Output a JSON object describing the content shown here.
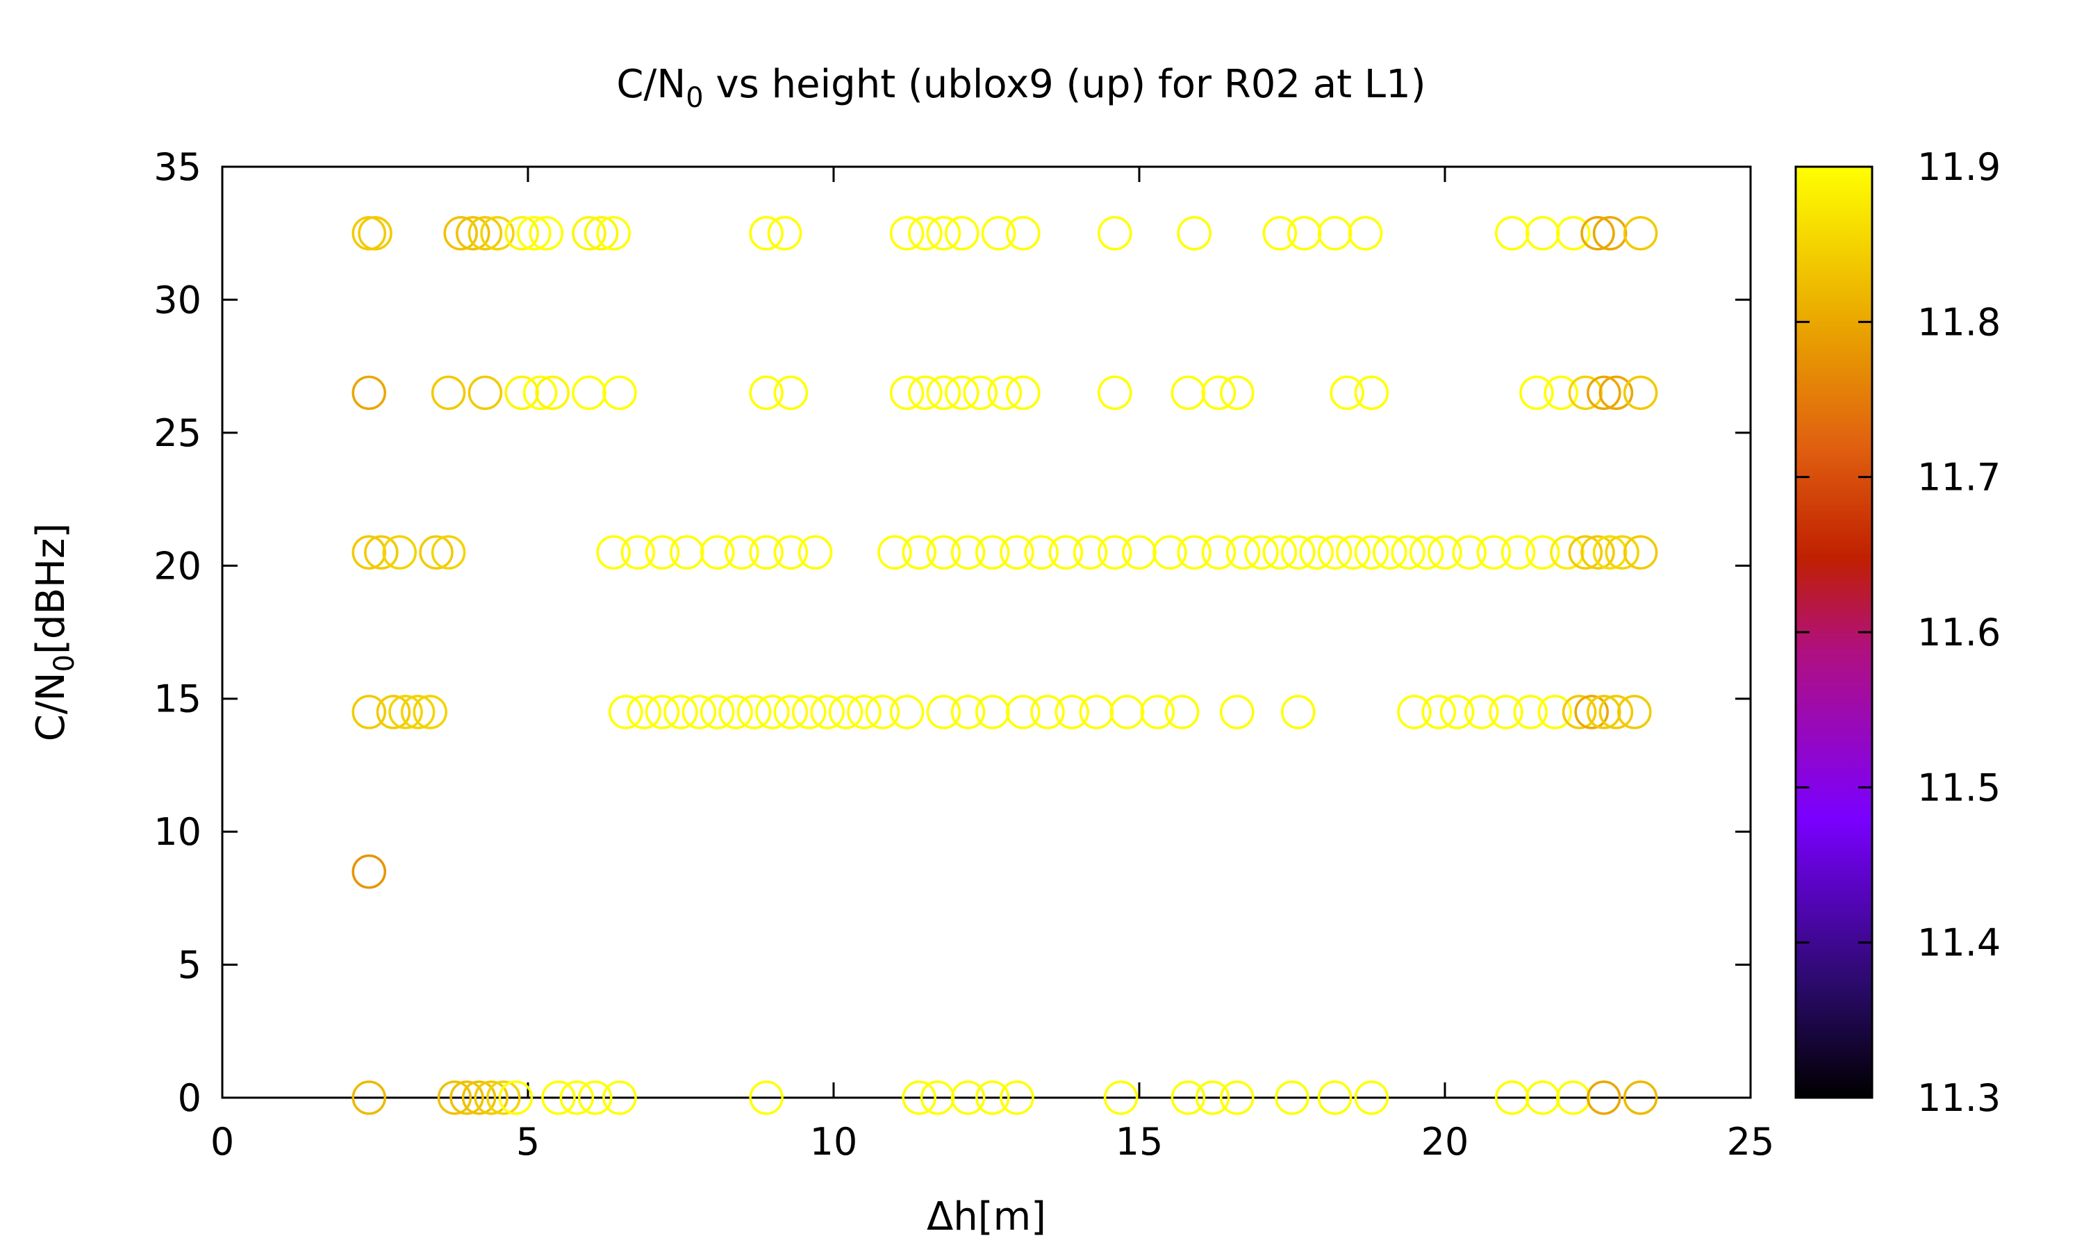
{
  "chart_data": {
    "type": "scatter",
    "title": "C/N0 vs height (ublox9 (up) for R02 at L1)",
    "title_main": "C/N",
    "title_sub": "0",
    "title_rest": " vs height (ublox9 (up) for R02 at L1)",
    "xlabel": "Δh[m]",
    "ylabel": "C/N0[dBHz]",
    "ylabel_main": "C/N",
    "ylabel_sub": "0",
    "ylabel_rest": "[dBHz]",
    "xlim": [
      0,
      25
    ],
    "ylim": [
      0,
      35
    ],
    "x_ticks": [
      0,
      5,
      10,
      15,
      20,
      25
    ],
    "y_ticks": [
      0,
      5,
      10,
      15,
      20,
      25,
      30,
      35
    ],
    "marker": "open-circle",
    "grid": false,
    "colorbar": {
      "range": [
        11.3,
        11.9
      ],
      "ticks": [
        11.3,
        11.4,
        11.5,
        11.6,
        11.7,
        11.8,
        11.9
      ],
      "palette": "black-blue-purple-red-orange-yellow",
      "stops": [
        {
          "v": 0.0,
          "color": "#000000"
        },
        {
          "v": 0.12,
          "color": "#2a0a6a"
        },
        {
          "v": 0.3,
          "color": "#7a00ff"
        },
        {
          "v": 0.48,
          "color": "#b01080"
        },
        {
          "v": 0.58,
          "color": "#c02000"
        },
        {
          "v": 0.7,
          "color": "#e06010"
        },
        {
          "v": 0.82,
          "color": "#e8a000"
        },
        {
          "v": 1.0,
          "color": "#ffff00"
        }
      ]
    },
    "series": [
      {
        "points": [
          [
            2.4,
            32.5,
            11.84
          ],
          [
            2.5,
            32.5,
            11.84
          ],
          [
            3.9,
            32.5,
            11.83
          ],
          [
            4.1,
            32.5,
            11.83
          ],
          [
            4.3,
            32.5,
            11.84
          ],
          [
            4.5,
            32.5,
            11.85
          ],
          [
            4.9,
            32.5,
            11.89
          ],
          [
            5.1,
            32.5,
            11.9
          ],
          [
            5.3,
            32.5,
            11.9
          ],
          [
            6.0,
            32.5,
            11.89
          ],
          [
            6.2,
            32.5,
            11.89
          ],
          [
            6.4,
            32.5,
            11.9
          ],
          [
            8.9,
            32.5,
            11.9
          ],
          [
            9.2,
            32.5,
            11.9
          ],
          [
            11.2,
            32.5,
            11.9
          ],
          [
            11.5,
            32.5,
            11.9
          ],
          [
            11.8,
            32.5,
            11.9
          ],
          [
            12.1,
            32.5,
            11.9
          ],
          [
            12.7,
            32.5,
            11.9
          ],
          [
            13.1,
            32.5,
            11.9
          ],
          [
            14.6,
            32.5,
            11.9
          ],
          [
            15.9,
            32.5,
            11.9
          ],
          [
            17.3,
            32.5,
            11.9
          ],
          [
            17.7,
            32.5,
            11.9
          ],
          [
            18.2,
            32.5,
            11.9
          ],
          [
            18.7,
            32.5,
            11.9
          ],
          [
            21.1,
            32.5,
            11.9
          ],
          [
            21.6,
            32.5,
            11.9
          ],
          [
            22.1,
            32.5,
            11.9
          ],
          [
            22.5,
            32.5,
            11.8
          ],
          [
            22.7,
            32.5,
            11.8
          ],
          [
            23.2,
            32.5,
            11.84
          ],
          [
            2.4,
            26.5,
            11.8
          ],
          [
            3.7,
            26.5,
            11.84
          ],
          [
            4.3,
            26.5,
            11.84
          ],
          [
            4.9,
            26.5,
            11.89
          ],
          [
            5.2,
            26.5,
            11.9
          ],
          [
            5.4,
            26.5,
            11.89
          ],
          [
            6.0,
            26.5,
            11.9
          ],
          [
            6.5,
            26.5,
            11.9
          ],
          [
            8.9,
            26.5,
            11.9
          ],
          [
            9.3,
            26.5,
            11.9
          ],
          [
            11.2,
            26.5,
            11.9
          ],
          [
            11.5,
            26.5,
            11.9
          ],
          [
            11.8,
            26.5,
            11.9
          ],
          [
            12.1,
            26.5,
            11.9
          ],
          [
            12.4,
            26.5,
            11.9
          ],
          [
            12.8,
            26.5,
            11.9
          ],
          [
            13.1,
            26.5,
            11.9
          ],
          [
            14.6,
            26.5,
            11.9
          ],
          [
            15.8,
            26.5,
            11.9
          ],
          [
            16.3,
            26.5,
            11.9
          ],
          [
            16.6,
            26.5,
            11.9
          ],
          [
            18.4,
            26.5,
            11.9
          ],
          [
            18.8,
            26.5,
            11.9
          ],
          [
            21.5,
            26.5,
            11.9
          ],
          [
            21.9,
            26.5,
            11.9
          ],
          [
            22.3,
            26.5,
            11.85
          ],
          [
            22.6,
            26.5,
            11.8
          ],
          [
            22.8,
            26.5,
            11.8
          ],
          [
            23.2,
            26.5,
            11.84
          ],
          [
            2.4,
            20.5,
            11.84
          ],
          [
            2.6,
            20.5,
            11.84
          ],
          [
            2.9,
            20.5,
            11.85
          ],
          [
            3.5,
            20.5,
            11.84
          ],
          [
            3.7,
            20.5,
            11.85
          ],
          [
            6.4,
            20.5,
            11.9
          ],
          [
            6.8,
            20.5,
            11.9
          ],
          [
            7.2,
            20.5,
            11.9
          ],
          [
            7.6,
            20.5,
            11.9
          ],
          [
            8.1,
            20.5,
            11.9
          ],
          [
            8.5,
            20.5,
            11.9
          ],
          [
            8.9,
            20.5,
            11.9
          ],
          [
            9.3,
            20.5,
            11.9
          ],
          [
            9.7,
            20.5,
            11.9
          ],
          [
            11.0,
            20.5,
            11.9
          ],
          [
            11.4,
            20.5,
            11.9
          ],
          [
            11.8,
            20.5,
            11.9
          ],
          [
            12.2,
            20.5,
            11.9
          ],
          [
            12.6,
            20.5,
            11.9
          ],
          [
            13.0,
            20.5,
            11.9
          ],
          [
            13.4,
            20.5,
            11.9
          ],
          [
            13.8,
            20.5,
            11.9
          ],
          [
            14.2,
            20.5,
            11.9
          ],
          [
            14.6,
            20.5,
            11.9
          ],
          [
            15.0,
            20.5,
            11.9
          ],
          [
            15.5,
            20.5,
            11.9
          ],
          [
            15.9,
            20.5,
            11.9
          ],
          [
            16.3,
            20.5,
            11.9
          ],
          [
            16.7,
            20.5,
            11.9
          ],
          [
            17.0,
            20.5,
            11.9
          ],
          [
            17.3,
            20.5,
            11.9
          ],
          [
            17.6,
            20.5,
            11.9
          ],
          [
            17.9,
            20.5,
            11.9
          ],
          [
            18.2,
            20.5,
            11.9
          ],
          [
            18.5,
            20.5,
            11.9
          ],
          [
            18.8,
            20.5,
            11.9
          ],
          [
            19.1,
            20.5,
            11.9
          ],
          [
            19.4,
            20.5,
            11.9
          ],
          [
            19.7,
            20.5,
            11.9
          ],
          [
            20.0,
            20.5,
            11.9
          ],
          [
            20.4,
            20.5,
            11.9
          ],
          [
            20.8,
            20.5,
            11.9
          ],
          [
            21.2,
            20.5,
            11.9
          ],
          [
            21.6,
            20.5,
            11.9
          ],
          [
            22.0,
            20.5,
            11.88
          ],
          [
            22.3,
            20.5,
            11.84
          ],
          [
            22.5,
            20.5,
            11.84
          ],
          [
            22.7,
            20.5,
            11.86
          ],
          [
            22.9,
            20.5,
            11.85
          ],
          [
            23.2,
            20.5,
            11.84
          ],
          [
            2.4,
            14.5,
            11.84
          ],
          [
            2.8,
            14.5,
            11.84
          ],
          [
            3.0,
            14.5,
            11.85
          ],
          [
            3.2,
            14.5,
            11.85
          ],
          [
            3.4,
            14.5,
            11.85
          ],
          [
            6.6,
            14.5,
            11.9
          ],
          [
            6.9,
            14.5,
            11.9
          ],
          [
            7.2,
            14.5,
            11.9
          ],
          [
            7.5,
            14.5,
            11.9
          ],
          [
            7.8,
            14.5,
            11.9
          ],
          [
            8.1,
            14.5,
            11.9
          ],
          [
            8.4,
            14.5,
            11.9
          ],
          [
            8.7,
            14.5,
            11.9
          ],
          [
            9.0,
            14.5,
            11.9
          ],
          [
            9.3,
            14.5,
            11.9
          ],
          [
            9.6,
            14.5,
            11.9
          ],
          [
            9.9,
            14.5,
            11.9
          ],
          [
            10.2,
            14.5,
            11.9
          ],
          [
            10.5,
            14.5,
            11.9
          ],
          [
            10.8,
            14.5,
            11.9
          ],
          [
            11.2,
            14.5,
            11.9
          ],
          [
            11.8,
            14.5,
            11.9
          ],
          [
            12.2,
            14.5,
            11.9
          ],
          [
            12.6,
            14.5,
            11.9
          ],
          [
            13.1,
            14.5,
            11.9
          ],
          [
            13.5,
            14.5,
            11.9
          ],
          [
            13.9,
            14.5,
            11.9
          ],
          [
            14.3,
            14.5,
            11.9
          ],
          [
            14.8,
            14.5,
            11.9
          ],
          [
            15.3,
            14.5,
            11.9
          ],
          [
            15.7,
            14.5,
            11.9
          ],
          [
            16.6,
            14.5,
            11.9
          ],
          [
            17.6,
            14.5,
            11.9
          ],
          [
            19.5,
            14.5,
            11.9
          ],
          [
            19.9,
            14.5,
            11.9
          ],
          [
            20.2,
            14.5,
            11.9
          ],
          [
            20.6,
            14.5,
            11.9
          ],
          [
            21.0,
            14.5,
            11.9
          ],
          [
            21.4,
            14.5,
            11.9
          ],
          [
            21.8,
            14.5,
            11.9
          ],
          [
            22.2,
            14.5,
            11.84
          ],
          [
            22.4,
            14.5,
            11.8
          ],
          [
            22.6,
            14.5,
            11.84
          ],
          [
            22.8,
            14.5,
            11.84
          ],
          [
            23.1,
            14.5,
            11.84
          ],
          [
            2.4,
            8.5,
            11.78
          ],
          [
            2.4,
            0,
            11.82
          ],
          [
            3.8,
            0,
            11.83
          ],
          [
            4.0,
            0,
            11.83
          ],
          [
            4.2,
            0,
            11.83
          ],
          [
            4.4,
            0,
            11.84
          ],
          [
            4.6,
            0,
            11.85
          ],
          [
            4.8,
            0,
            11.9
          ],
          [
            5.5,
            0,
            11.9
          ],
          [
            5.8,
            0,
            11.9
          ],
          [
            6.1,
            0,
            11.9
          ],
          [
            6.5,
            0,
            11.9
          ],
          [
            8.9,
            0,
            11.9
          ],
          [
            11.4,
            0,
            11.9
          ],
          [
            11.7,
            0,
            11.9
          ],
          [
            12.2,
            0,
            11.9
          ],
          [
            12.6,
            0,
            11.9
          ],
          [
            13.0,
            0,
            11.9
          ],
          [
            14.7,
            0,
            11.9
          ],
          [
            15.8,
            0,
            11.9
          ],
          [
            16.2,
            0,
            11.9
          ],
          [
            16.6,
            0,
            11.9
          ],
          [
            17.5,
            0,
            11.9
          ],
          [
            18.2,
            0,
            11.9
          ],
          [
            18.8,
            0,
            11.9
          ],
          [
            21.1,
            0,
            11.9
          ],
          [
            21.6,
            0,
            11.9
          ],
          [
            22.1,
            0,
            11.9
          ],
          [
            22.6,
            0,
            11.8
          ],
          [
            23.2,
            0,
            11.82
          ]
        ]
      }
    ]
  }
}
